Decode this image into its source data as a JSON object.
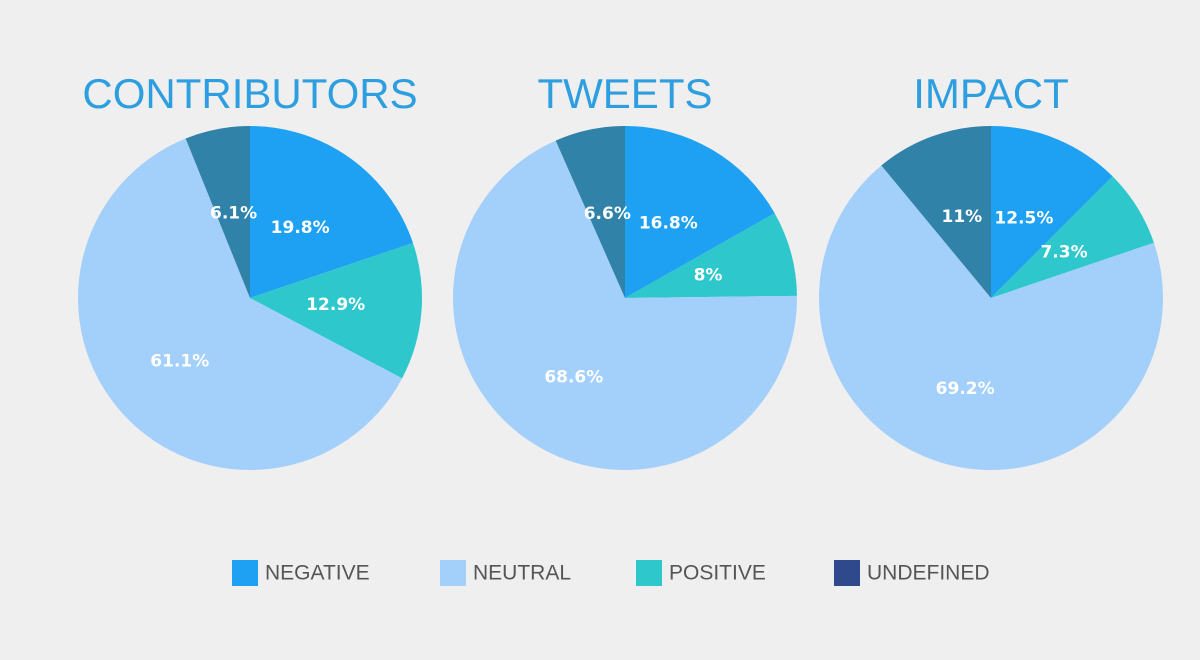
{
  "chart_data": [
    {
      "type": "pie",
      "title": "CONTRIBUTORS",
      "values": [
        19.8,
        12.9,
        61.1,
        6.1
      ],
      "value_labels": [
        "19.8%",
        "12.9%",
        "61.1%",
        "6.1%"
      ],
      "colors": [
        "#1ea1f2",
        "#2ec7cc",
        "#a3cffb",
        "#3182a9"
      ]
    },
    {
      "type": "pie",
      "title": "TWEETS",
      "values": [
        16.8,
        8,
        68.6,
        6.6
      ],
      "value_labels": [
        "16.8%",
        "8%",
        "68.6%",
        "6.6%"
      ],
      "colors": [
        "#1ea1f2",
        "#2ec7cc",
        "#a3cffb",
        "#3182a9"
      ]
    },
    {
      "type": "pie",
      "title": "IMPACT",
      "values": [
        12.5,
        7.3,
        69.2,
        11
      ],
      "value_labels": [
        "12.5%",
        "7.3%",
        "69.2%",
        "11%"
      ],
      "colors": [
        "#1ea1f2",
        "#2ec7cc",
        "#a3cffb",
        "#3182a9"
      ]
    }
  ],
  "legend": [
    {
      "name": "NEGATIVE",
      "color": "#1ea1f2"
    },
    {
      "name": "NEUTRAL",
      "color": "#a3cffb"
    },
    {
      "name": "POSITIVE",
      "color": "#2ec7cc"
    },
    {
      "name": "UNDEFINED",
      "color": "#2e4a8c"
    }
  ]
}
